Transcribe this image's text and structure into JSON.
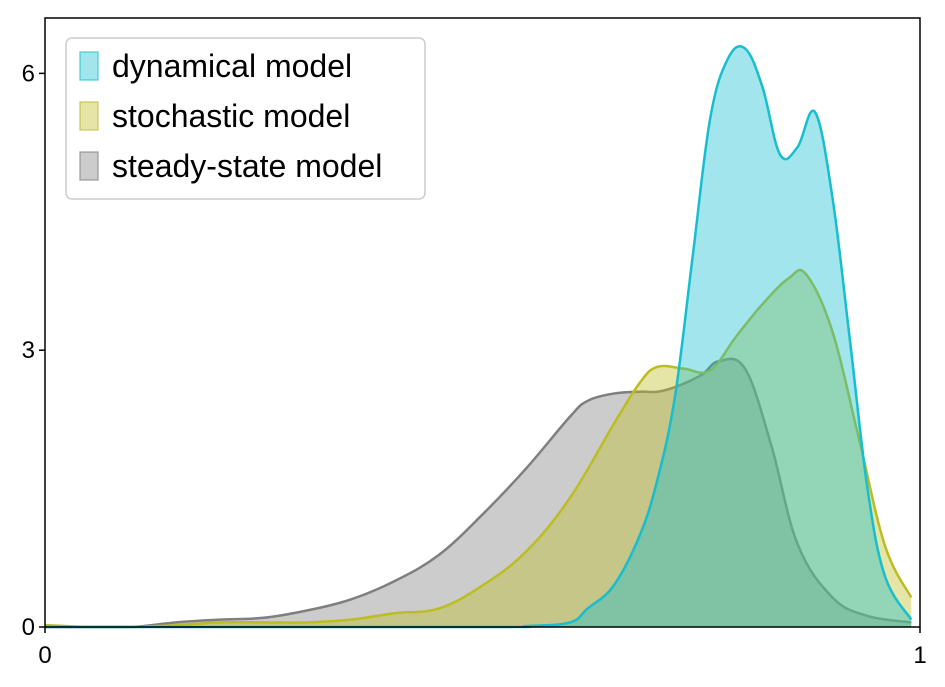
{
  "chart_data": {
    "type": "area",
    "title": "",
    "xlabel": "",
    "ylabel": "",
    "xlim": [
      0,
      1
    ],
    "ylim": [
      0,
      6.6
    ],
    "x_ticks": [
      0,
      1
    ],
    "x_tick_labels": [
      "0",
      "1"
    ],
    "y_ticks": [
      0,
      3,
      6
    ],
    "y_tick_labels": [
      "0",
      "3",
      "6"
    ],
    "grid": false,
    "legend_position": "top-left",
    "series": [
      {
        "name": "steady-state model",
        "line_color": "#7f7f7f",
        "fill_color": "#7f7f7f",
        "fill_opacity": 0.4,
        "x": [
          0,
          0.05,
          0.1,
          0.15,
          0.2,
          0.25,
          0.3,
          0.35,
          0.4,
          0.45,
          0.5,
          0.55,
          0.6,
          0.62,
          0.65,
          0.68,
          0.7,
          0.72,
          0.75,
          0.77,
          0.8,
          0.83,
          0.86,
          0.9,
          0.94,
          0.99
        ],
        "y": [
          0.0,
          0.0,
          0.0,
          0.05,
          0.08,
          0.1,
          0.18,
          0.3,
          0.5,
          0.78,
          1.22,
          1.72,
          2.28,
          2.45,
          2.53,
          2.55,
          2.55,
          2.6,
          2.73,
          2.88,
          2.8,
          1.97,
          0.9,
          0.32,
          0.12,
          0.05
        ]
      },
      {
        "name": "stochastic model",
        "line_color": "#bcbd22",
        "fill_color": "#bcbd22",
        "fill_opacity": 0.4,
        "x": [
          0,
          0.05,
          0.1,
          0.15,
          0.2,
          0.25,
          0.3,
          0.35,
          0.4,
          0.45,
          0.5,
          0.55,
          0.6,
          0.65,
          0.68,
          0.7,
          0.73,
          0.76,
          0.79,
          0.82,
          0.85,
          0.87,
          0.9,
          0.93,
          0.96,
          0.99
        ],
        "y": [
          0.02,
          0.0,
          0.0,
          0.02,
          0.05,
          0.05,
          0.05,
          0.08,
          0.15,
          0.2,
          0.45,
          0.82,
          1.4,
          2.2,
          2.65,
          2.82,
          2.8,
          2.78,
          3.15,
          3.5,
          3.78,
          3.82,
          3.2,
          2.05,
          0.88,
          0.32
        ]
      },
      {
        "name": "dynamical model",
        "line_color": "#17becf",
        "fill_color": "#17becf",
        "fill_opacity": 0.4,
        "x": [
          0,
          0.5,
          0.55,
          0.6,
          0.62,
          0.65,
          0.68,
          0.7,
          0.72,
          0.74,
          0.76,
          0.78,
          0.8,
          0.82,
          0.84,
          0.86,
          0.88,
          0.9,
          0.92,
          0.94,
          0.96,
          0.99
        ],
        "y": [
          0.0,
          0.0,
          0.01,
          0.05,
          0.2,
          0.45,
          1.0,
          1.6,
          2.5,
          4.0,
          5.5,
          6.15,
          6.27,
          5.85,
          5.12,
          5.2,
          5.58,
          4.65,
          3.1,
          1.5,
          0.55,
          0.08
        ]
      }
    ]
  }
}
